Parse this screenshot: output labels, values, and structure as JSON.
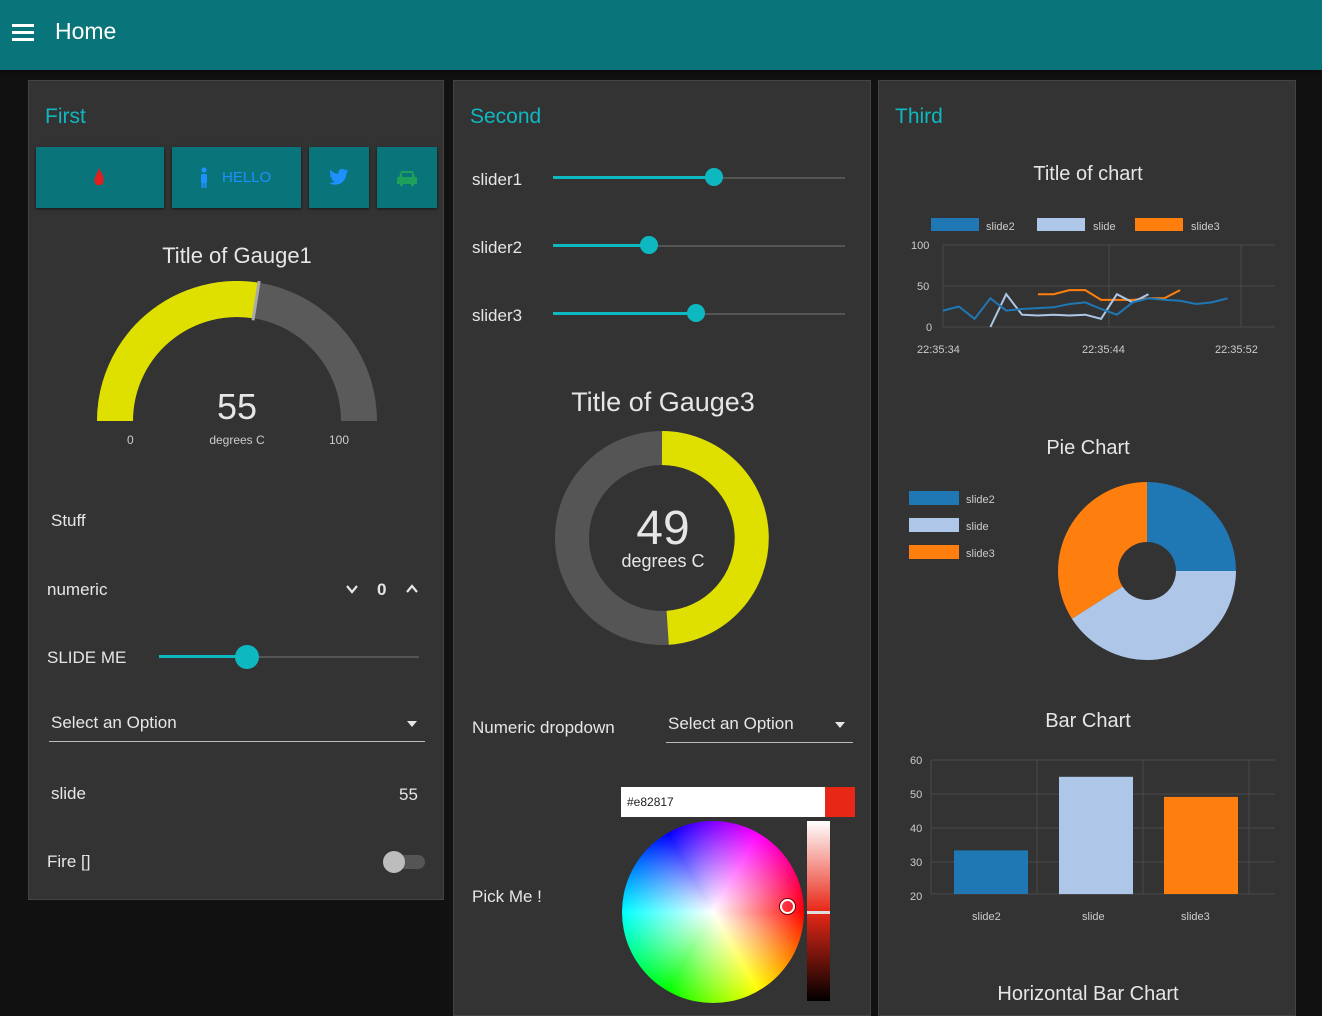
{
  "header": {
    "title": "Home"
  },
  "first": {
    "title": "First",
    "buttons": {
      "hello_label": "HELLO"
    },
    "gauge1": {
      "title": "Title of Gauge1",
      "value": 55,
      "units": "degrees C",
      "min": "0",
      "max": "100",
      "min_num": 0,
      "max_num": 100
    },
    "stuff_label": "Stuff",
    "numeric": {
      "label": "numeric",
      "value": "0"
    },
    "slide_me": {
      "label": "SLIDE ME",
      "value": 0.34
    },
    "select": {
      "value": "Select an Option"
    },
    "slide": {
      "label": "slide",
      "value": "55"
    },
    "fire": {
      "label": "Fire []",
      "on": false
    }
  },
  "second": {
    "title": "Second",
    "sliders": [
      {
        "label": "slider1",
        "value": 0.55
      },
      {
        "label": "slider2",
        "value": 0.33
      },
      {
        "label": "slider3",
        "value": 0.49
      }
    ],
    "gauge3": {
      "title": "Title of Gauge3",
      "value": "49",
      "value_num": 49,
      "units": "degrees C"
    },
    "numeric_dropdown": {
      "label": "Numeric dropdown",
      "value": "Select an Option"
    },
    "picker": {
      "label": "Pick Me !",
      "hex": "#e82817"
    }
  },
  "third": {
    "title": "Third",
    "line_chart": {
      "title": "Title of chart",
      "legend": [
        "slide2",
        "slide",
        "slide3"
      ],
      "yticks": [
        "100",
        "50",
        "0"
      ],
      "xticks": [
        "22:35:34",
        "22:35:44",
        "22:35:52"
      ]
    },
    "pie_title": "Pie Chart",
    "pie_legend": [
      "slide2",
      "slide",
      "slide3"
    ],
    "bar_title": "Bar Chart",
    "bar_yticks": [
      "60",
      "50",
      "40",
      "30",
      "20"
    ],
    "bar_categories": [
      "slide2",
      "slide",
      "slide3"
    ],
    "hbar_title": "Horizontal Bar Chart"
  },
  "colors": {
    "accent": "#0eb8c0",
    "header": "#097479",
    "series1": "#1f77b4",
    "series2": "#aec7e8",
    "series3": "#ff7f0e",
    "gauge": "#e0e000"
  },
  "chart_data": [
    {
      "type": "line",
      "title": "Title of chart",
      "ylim": [
        0,
        100
      ],
      "series": [
        {
          "name": "slide2",
          "x": [
            0,
            1,
            2,
            3,
            4,
            5,
            6,
            7,
            8,
            9,
            10,
            11,
            12,
            13,
            14,
            15,
            16,
            17,
            18
          ],
          "y": [
            20,
            25,
            10,
            35,
            20,
            22,
            23,
            24,
            28,
            30,
            22,
            15,
            30,
            35,
            33,
            32,
            28,
            30,
            35
          ]
        },
        {
          "name": "slide",
          "x": [
            3,
            4,
            5,
            6,
            7,
            8,
            9,
            10,
            11,
            12,
            13
          ],
          "y": [
            0,
            40,
            15,
            14,
            15,
            14,
            15,
            10,
            40,
            30,
            40
          ]
        },
        {
          "name": "slide3",
          "x": [
            6,
            7,
            8,
            9,
            10,
            11,
            12,
            13,
            14,
            15
          ],
          "y": [
            40,
            40,
            45,
            45,
            33,
            33,
            33,
            35,
            35,
            45
          ]
        }
      ]
    },
    {
      "type": "pie",
      "title": "Pie Chart",
      "categories": [
        "slide2",
        "slide",
        "slide3"
      ],
      "values": [
        25,
        41,
        34
      ]
    },
    {
      "type": "bar",
      "title": "Bar Chart",
      "categories": [
        "slide2",
        "slide",
        "slide3"
      ],
      "values": [
        33,
        55,
        49
      ],
      "ylim": [
        20,
        60
      ]
    }
  ]
}
